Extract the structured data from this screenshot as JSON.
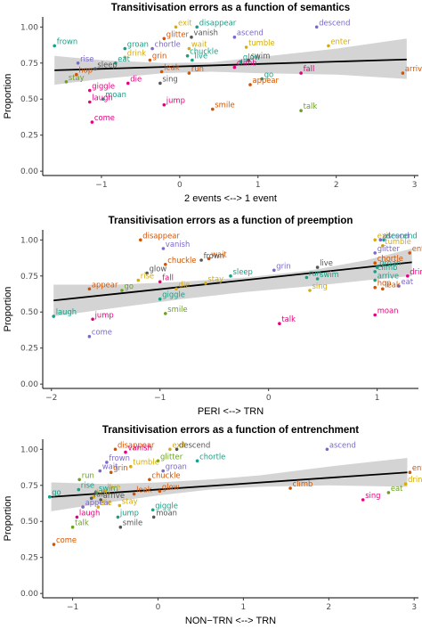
{
  "chart_data": [
    {
      "type": "scatter",
      "title": "Transitivisation errors as a function of semantics",
      "xlabel": "2 events  <--> 1 event",
      "ylabel": "Proportion",
      "xlim": [
        -1.75,
        3.05
      ],
      "ylim": [
        -0.03,
        1.07
      ],
      "xticks": [
        -1,
        0,
        1,
        2,
        3
      ],
      "yticks": [
        0.0,
        0.25,
        0.5,
        0.75,
        1.0
      ],
      "grid": false,
      "fit": {
        "x": [
          -1.6,
          2.9
        ],
        "y": [
          0.7,
          0.775
        ]
      },
      "band": {
        "x": [
          -1.6,
          -1.0,
          -0.2,
          0.4,
          1.0,
          2.0,
          2.9
        ],
        "lo": [
          0.6,
          0.64,
          0.68,
          0.69,
          0.68,
          0.67,
          0.64
        ],
        "hi": [
          0.8,
          0.77,
          0.75,
          0.755,
          0.79,
          0.85,
          0.92
        ]
      },
      "points": [
        {
          "word": "exit",
          "x": -0.05,
          "y": 1.0,
          "color": "#D4AC0D"
        },
        {
          "word": "disappear",
          "x": 0.22,
          "y": 1.0,
          "color": "#16A085"
        },
        {
          "word": "descend",
          "x": 1.75,
          "y": 1.0,
          "color": "#7B68C8"
        },
        {
          "word": "glitter",
          "x": -0.2,
          "y": 0.92,
          "color": "#D35400"
        },
        {
          "word": "vanish",
          "x": 0.15,
          "y": 0.93,
          "color": "#555555"
        },
        {
          "word": "ascend",
          "x": 0.7,
          "y": 0.93,
          "color": "#7B68C8"
        },
        {
          "word": "frown",
          "x": -1.6,
          "y": 0.87,
          "color": "#16A085"
        },
        {
          "word": "groan",
          "x": -0.7,
          "y": 0.85,
          "color": "#16A085"
        },
        {
          "word": "chortle",
          "x": -0.35,
          "y": 0.85,
          "color": "#7B68C8"
        },
        {
          "word": "wait",
          "x": 0.12,
          "y": 0.85,
          "color": "#D4AC0D"
        },
        {
          "word": "tumble",
          "x": 0.85,
          "y": 0.86,
          "color": "#D4AC0D"
        },
        {
          "word": "enter",
          "x": 1.9,
          "y": 0.87,
          "color": "#D4AC0D"
        },
        {
          "word": "drink",
          "x": -0.7,
          "y": 0.79,
          "color": "#D4AC0D"
        },
        {
          "word": "chuckle",
          "x": 0.1,
          "y": 0.8,
          "color": "#16A085"
        },
        {
          "word": "rise",
          "x": -1.3,
          "y": 0.75,
          "color": "#7B68C8"
        },
        {
          "word": "eat",
          "x": -0.82,
          "y": 0.75,
          "color": "#16A085"
        },
        {
          "word": "grin",
          "x": -0.38,
          "y": 0.77,
          "color": "#D35400"
        },
        {
          "word": "live",
          "x": 0.16,
          "y": 0.77,
          "color": "#16A085"
        },
        {
          "word": "glow",
          "x": 0.78,
          "y": 0.76,
          "color": "#16A085"
        },
        {
          "word": "swim",
          "x": 0.88,
          "y": 0.77,
          "color": "#555555"
        },
        {
          "word": "sleep",
          "x": -1.08,
          "y": 0.71,
          "color": "#555555"
        },
        {
          "word": "climb",
          "x": 0.7,
          "y": 0.72,
          "color": "#E6007E"
        },
        {
          "word": "hop",
          "x": -1.32,
          "y": 0.67,
          "color": "#D35400"
        },
        {
          "word": "run",
          "x": 0.12,
          "y": 0.68,
          "color": "#D35400"
        },
        {
          "word": "leak",
          "x": -0.23,
          "y": 0.69,
          "color": "#D35400"
        },
        {
          "word": "fall",
          "x": 1.55,
          "y": 0.68,
          "color": "#E6007E"
        },
        {
          "word": "arrive",
          "x": 2.85,
          "y": 0.68,
          "color": "#D35400"
        },
        {
          "word": "stay",
          "x": -1.45,
          "y": 0.62,
          "color": "#6AA121"
        },
        {
          "word": "die",
          "x": -0.66,
          "y": 0.61,
          "color": "#E6007E"
        },
        {
          "word": "sing",
          "x": -0.25,
          "y": 0.61,
          "color": "#555555"
        },
        {
          "word": "go",
          "x": 1.05,
          "y": 0.64,
          "color": "#16A085"
        },
        {
          "word": "appear",
          "x": 0.9,
          "y": 0.6,
          "color": "#D35400"
        },
        {
          "word": "giggle",
          "x": -1.15,
          "y": 0.56,
          "color": "#E6007E"
        },
        {
          "word": "moan",
          "x": -0.98,
          "y": 0.5,
          "color": "#16A085"
        },
        {
          "word": "jump",
          "x": -0.2,
          "y": 0.46,
          "color": "#E6007E"
        },
        {
          "word": "laugh",
          "x": -1.15,
          "y": 0.48,
          "color": "#E6007E"
        },
        {
          "word": "smile",
          "x": 0.42,
          "y": 0.43,
          "color": "#D35400"
        },
        {
          "word": "talk",
          "x": 1.55,
          "y": 0.42,
          "color": "#6AA121"
        },
        {
          "word": "come",
          "x": -1.12,
          "y": 0.34,
          "color": "#E6007E"
        }
      ]
    },
    {
      "type": "scatter",
      "title": "Transitivisation errors as a function of preemption",
      "xlabel": "PERI <--> TRN",
      "ylabel": "Proportion",
      "xlim": [
        -2.08,
        1.38
      ],
      "ylim": [
        -0.03,
        1.07
      ],
      "xticks": [
        -2,
        -1,
        0,
        1
      ],
      "yticks": [
        0.0,
        0.25,
        0.5,
        0.75,
        1.0
      ],
      "grid": false,
      "fit": {
        "x": [
          -1.98,
          1.32
        ],
        "y": [
          0.58,
          0.845
        ]
      },
      "band": {
        "x": [
          -1.98,
          -1.4,
          -0.8,
          -0.2,
          0.4,
          0.9,
          1.32
        ],
        "lo": [
          0.47,
          0.53,
          0.59,
          0.64,
          0.68,
          0.72,
          0.75
        ],
        "hi": [
          0.69,
          0.69,
          0.71,
          0.74,
          0.79,
          0.86,
          0.94
        ]
      },
      "points": [
        {
          "word": "disappear",
          "x": -1.18,
          "y": 1.0,
          "color": "#D35400"
        },
        {
          "word": "exit",
          "x": 0.98,
          "y": 1.0,
          "color": "#D4AC0D"
        },
        {
          "word": "ascend",
          "x": 1.03,
          "y": 1.0,
          "color": "#7B68C8"
        },
        {
          "word": "descend",
          "x": 1.06,
          "y": 1.0,
          "color": "#16A085"
        },
        {
          "word": "tumble",
          "x": 1.05,
          "y": 0.96,
          "color": "#D4AC0D"
        },
        {
          "word": "glitter",
          "x": 0.98,
          "y": 0.91,
          "color": "#7B68C8"
        },
        {
          "word": "enter",
          "x": 1.3,
          "y": 0.91,
          "color": "#D35400"
        },
        {
          "word": "vanish",
          "x": -0.97,
          "y": 0.94,
          "color": "#7B68C8"
        },
        {
          "word": "wait",
          "x": -0.55,
          "y": 0.87,
          "color": "#D35400"
        },
        {
          "word": "frown",
          "x": -0.62,
          "y": 0.86,
          "color": "#555555"
        },
        {
          "word": "chuckle",
          "x": -0.95,
          "y": 0.83,
          "color": "#D35400"
        },
        {
          "word": "glow",
          "x": -1.12,
          "y": 0.77,
          "color": "#555555"
        },
        {
          "word": "grin",
          "x": 0.05,
          "y": 0.79,
          "color": "#7B68C8"
        },
        {
          "word": "live",
          "x": 0.45,
          "y": 0.81,
          "color": "#555555"
        },
        {
          "word": "climb",
          "x": 0.98,
          "y": 0.78,
          "color": "#16A085"
        },
        {
          "word": "chortle",
          "x": 0.98,
          "y": 0.84,
          "color": "#D35400"
        },
        {
          "word": "groan",
          "x": 1.0,
          "y": 0.81,
          "color": "#16A085"
        },
        {
          "word": "drink",
          "x": 1.28,
          "y": 0.75,
          "color": "#E6007E"
        },
        {
          "word": "eat",
          "x": 1.2,
          "y": 0.68,
          "color": "#7B68C8"
        },
        {
          "word": "rise",
          "x": -1.2,
          "y": 0.72,
          "color": "#D4AC0D"
        },
        {
          "word": "fall",
          "x": -1.0,
          "y": 0.71,
          "color": "#E6007E"
        },
        {
          "word": "sleep",
          "x": -0.35,
          "y": 0.75,
          "color": "#16A085"
        },
        {
          "word": "stay",
          "x": -0.58,
          "y": 0.7,
          "color": "#D4AC0D"
        },
        {
          "word": "run",
          "x": 0.35,
          "y": 0.74,
          "color": "#16A085"
        },
        {
          "word": "swim",
          "x": 0.45,
          "y": 0.73,
          "color": "#16A085"
        },
        {
          "word": "arrive",
          "x": 0.98,
          "y": 0.72,
          "color": "#16A085"
        },
        {
          "word": "appear",
          "x": -1.65,
          "y": 0.66,
          "color": "#D35400"
        },
        {
          "word": "go",
          "x": -1.35,
          "y": 0.65,
          "color": "#6AA121"
        },
        {
          "word": "die",
          "x": -0.85,
          "y": 0.66,
          "color": "#D4AC0D"
        },
        {
          "word": "sing",
          "x": 0.38,
          "y": 0.65,
          "color": "#D4AC0D"
        },
        {
          "word": "hop",
          "x": 0.98,
          "y": 0.67,
          "color": "#D35400"
        },
        {
          "word": "leak",
          "x": 1.05,
          "y": 0.66,
          "color": "#D35400"
        },
        {
          "word": "giggle",
          "x": -1.0,
          "y": 0.59,
          "color": "#16A085"
        },
        {
          "word": "laugh",
          "x": -1.98,
          "y": 0.47,
          "color": "#16A085"
        },
        {
          "word": "smile",
          "x": -0.95,
          "y": 0.49,
          "color": "#6AA121"
        },
        {
          "word": "jump",
          "x": -1.62,
          "y": 0.45,
          "color": "#E6007E"
        },
        {
          "word": "talk",
          "x": 0.1,
          "y": 0.42,
          "color": "#E6007E"
        },
        {
          "word": "moan",
          "x": 0.98,
          "y": 0.48,
          "color": "#E6007E"
        },
        {
          "word": "come",
          "x": -1.65,
          "y": 0.33,
          "color": "#7B68C8"
        }
      ]
    },
    {
      "type": "scatter",
      "title": "Transitivisation errors as a function of entrenchment",
      "xlabel": "NON−TRN <--> TRN",
      "ylabel": "Proportion",
      "xlim": [
        -1.35,
        3.05
      ],
      "ylim": [
        -0.03,
        1.07
      ],
      "xticks": [
        -1,
        0,
        1,
        2,
        3
      ],
      "yticks": [
        0.0,
        0.25,
        0.5,
        0.75,
        1.0
      ],
      "grid": false,
      "fit": {
        "x": [
          -1.25,
          2.92
        ],
        "y": [
          0.67,
          0.84
        ]
      },
      "band": {
        "x": [
          -1.25,
          -0.6,
          0.0,
          0.6,
          1.2,
          2.0,
          2.92
        ],
        "lo": [
          0.57,
          0.63,
          0.68,
          0.72,
          0.74,
          0.75,
          0.74
        ],
        "hi": [
          0.77,
          0.76,
          0.77,
          0.79,
          0.82,
          0.88,
          0.94
        ]
      },
      "points": [
        {
          "word": "disappear",
          "x": -0.5,
          "y": 1.0,
          "color": "#D35400"
        },
        {
          "word": "vanish",
          "x": -0.38,
          "y": 0.98,
          "color": "#E6007E"
        },
        {
          "word": "exit",
          "x": 0.14,
          "y": 1.0,
          "color": "#D4AC0D"
        },
        {
          "word": "descend",
          "x": 0.22,
          "y": 1.0,
          "color": "#555555"
        },
        {
          "word": "ascend",
          "x": 1.98,
          "y": 1.0,
          "color": "#7B68C8"
        },
        {
          "word": "frown",
          "x": -0.6,
          "y": 0.91,
          "color": "#7B68C8"
        },
        {
          "word": "glitter",
          "x": 0.0,
          "y": 0.92,
          "color": "#6AA121"
        },
        {
          "word": "chortle",
          "x": 0.46,
          "y": 0.92,
          "color": "#16A085"
        },
        {
          "word": "tumble",
          "x": -0.32,
          "y": 0.88,
          "color": "#D4AC0D"
        },
        {
          "word": "wait",
          "x": -0.68,
          "y": 0.85,
          "color": "#7B68C8"
        },
        {
          "word": "grin",
          "x": -0.55,
          "y": 0.84,
          "color": "#D35400"
        },
        {
          "word": "groan",
          "x": 0.06,
          "y": 0.85,
          "color": "#7B68C8"
        },
        {
          "word": "enter",
          "x": 2.95,
          "y": 0.84,
          "color": "#D35400"
        },
        {
          "word": "chuckle",
          "x": -0.1,
          "y": 0.79,
          "color": "#D35400"
        },
        {
          "word": "run",
          "x": -0.92,
          "y": 0.79,
          "color": "#6AA121"
        },
        {
          "word": "drink",
          "x": 2.9,
          "y": 0.76,
          "color": "#D4AC0D"
        },
        {
          "word": "climb",
          "x": 1.55,
          "y": 0.73,
          "color": "#D35400"
        },
        {
          "word": "rise",
          "x": -0.93,
          "y": 0.72,
          "color": "#16A085"
        },
        {
          "word": "swim",
          "x": -0.72,
          "y": 0.7,
          "color": "#16A085"
        },
        {
          "word": "glow",
          "x": 0.02,
          "y": 0.71,
          "color": "#D35400"
        },
        {
          "word": "live",
          "x": -0.62,
          "y": 0.71,
          "color": "#D4AC0D"
        },
        {
          "word": "leak",
          "x": -0.28,
          "y": 0.69,
          "color": "#D35400"
        },
        {
          "word": "hop",
          "x": -0.75,
          "y": 0.67,
          "color": "#D4AC0D"
        },
        {
          "word": "fall",
          "x": -0.78,
          "y": 0.66,
          "color": "#555555"
        },
        {
          "word": "arrive",
          "x": -0.67,
          "y": 0.65,
          "color": "#555555"
        },
        {
          "word": "go",
          "x": -1.27,
          "y": 0.67,
          "color": "#16A085"
        },
        {
          "word": "eat",
          "x": 2.7,
          "y": 0.7,
          "color": "#6AA121"
        },
        {
          "word": "sing",
          "x": 2.4,
          "y": 0.65,
          "color": "#E6007E"
        },
        {
          "word": "appear",
          "x": -0.88,
          "y": 0.6,
          "color": "#7B68C8"
        },
        {
          "word": "die",
          "x": -0.7,
          "y": 0.6,
          "color": "#D4AC0D"
        },
        {
          "word": "stay",
          "x": -0.45,
          "y": 0.61,
          "color": "#D4AC0D"
        },
        {
          "word": "giggle",
          "x": -0.06,
          "y": 0.58,
          "color": "#16A085"
        },
        {
          "word": "laugh",
          "x": -0.95,
          "y": 0.53,
          "color": "#E6007E"
        },
        {
          "word": "jump",
          "x": -0.47,
          "y": 0.53,
          "color": "#16A085"
        },
        {
          "word": "moan",
          "x": -0.05,
          "y": 0.53,
          "color": "#555555"
        },
        {
          "word": "talk",
          "x": -1.0,
          "y": 0.46,
          "color": "#6AA121"
        },
        {
          "word": "smile",
          "x": -0.44,
          "y": 0.46,
          "color": "#555555"
        },
        {
          "word": "come",
          "x": -1.22,
          "y": 0.34,
          "color": "#D35400"
        }
      ]
    }
  ]
}
